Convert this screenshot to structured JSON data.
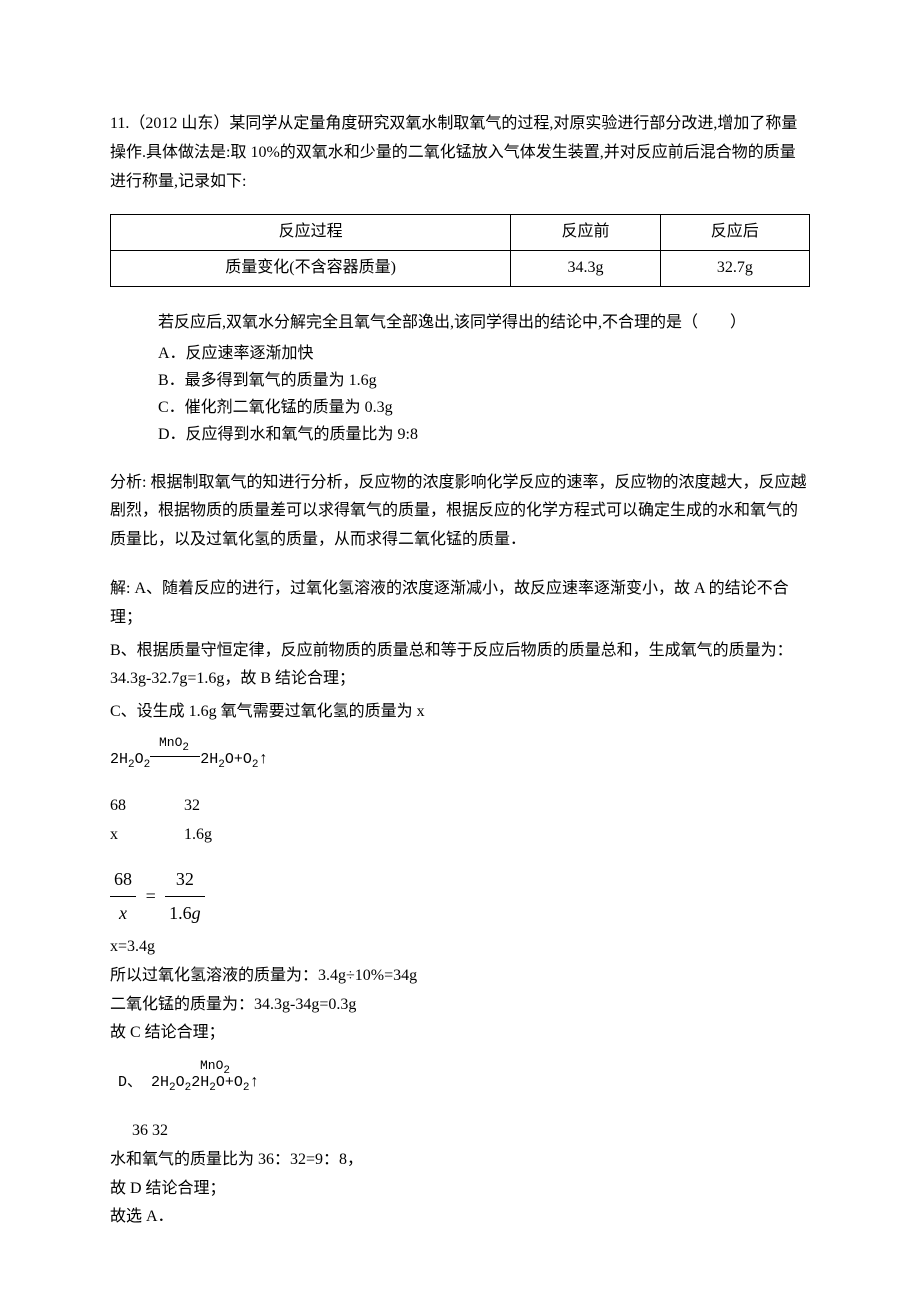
{
  "question": {
    "intro": "11.（2012 山东）某同学从定量角度研究双氧水制取氧气的过程,对原实验进行部分改进,增加了称量操作.具体做法是:取 10%的双氧水和少量的二氧化锰放入气体发生装置,并对反应前后混合物的质量进行称量,记录如下:"
  },
  "table": {
    "header": [
      "反应过程",
      "反应前",
      "反应后"
    ],
    "row": [
      "质量变化(不含容器质量)",
      "34.3g",
      "32.7g"
    ]
  },
  "conclusion_intro": "若反应后,双氧水分解完全且氧气全部逸出,该同学得出的结论中,不合理的是（　　）",
  "options": {
    "A": "A．反应速率逐渐加快",
    "B": "B．最多得到氧气的质量为 1.6g",
    "C": "C．催化剂二氧化锰的质量为 0.3g",
    "D": "D．反应得到水和氧气的质量比为 9:8"
  },
  "analysis": "分析: 根据制取氧气的知进行分析，反应物的浓度影响化学反应的速率，反应物的浓度越大，反应越剧烈，根据物质的质量差可以求得氧气的质量，根据反应的化学方程式可以确定生成的水和氧气的质量比，以及过氧化氢的质量，从而求得二氧化锰的质量．",
  "solution": {
    "A": "解: A、随着反应的进行，过氧化氢溶液的浓度逐渐减小，故反应速率逐渐变小，故 A 的结论不合理；",
    "B": "B、根据质量守恒定律，反应前物质的质量总和等于反应后物质的质量总和，生成氧气的质量为：34.3g-32.7g=1.6g，故 B 结论合理；",
    "C_intro": "C、设生成 1.6g 氧气需要过氧化氢的质量为 x",
    "equation": {
      "left": "2H",
      "sub1": "2",
      "mid1": "O",
      "sub2": "2",
      "catalyst": "MnO",
      "cat_sub": "2",
      "right1": "2H",
      "sub3": "2",
      "right2": "O+O",
      "sub4": "2",
      "arrow": "↑"
    },
    "ratio": {
      "row1_col1": "68",
      "row1_col2": "32",
      "row2_col1": "x",
      "row2_col2": "1.6g"
    },
    "fraction": {
      "num1": "68",
      "den1": "x",
      "num2": "32",
      "den2": "1.6g"
    },
    "C_calc": [
      "x=3.4g",
      "所以过氧化氢溶液的质量为：3.4g÷10%=34g",
      "二氧化锰的质量为：34.3g-34g=0.3g",
      "故 C 结论合理；"
    ],
    "D_prefix": "D、",
    "D_ratio_label": "36   32",
    "D_lines": [
      "水和氧气的质量比为 36：32=9：8，",
      "故 D 结论合理；",
      "故选 A．"
    ]
  }
}
